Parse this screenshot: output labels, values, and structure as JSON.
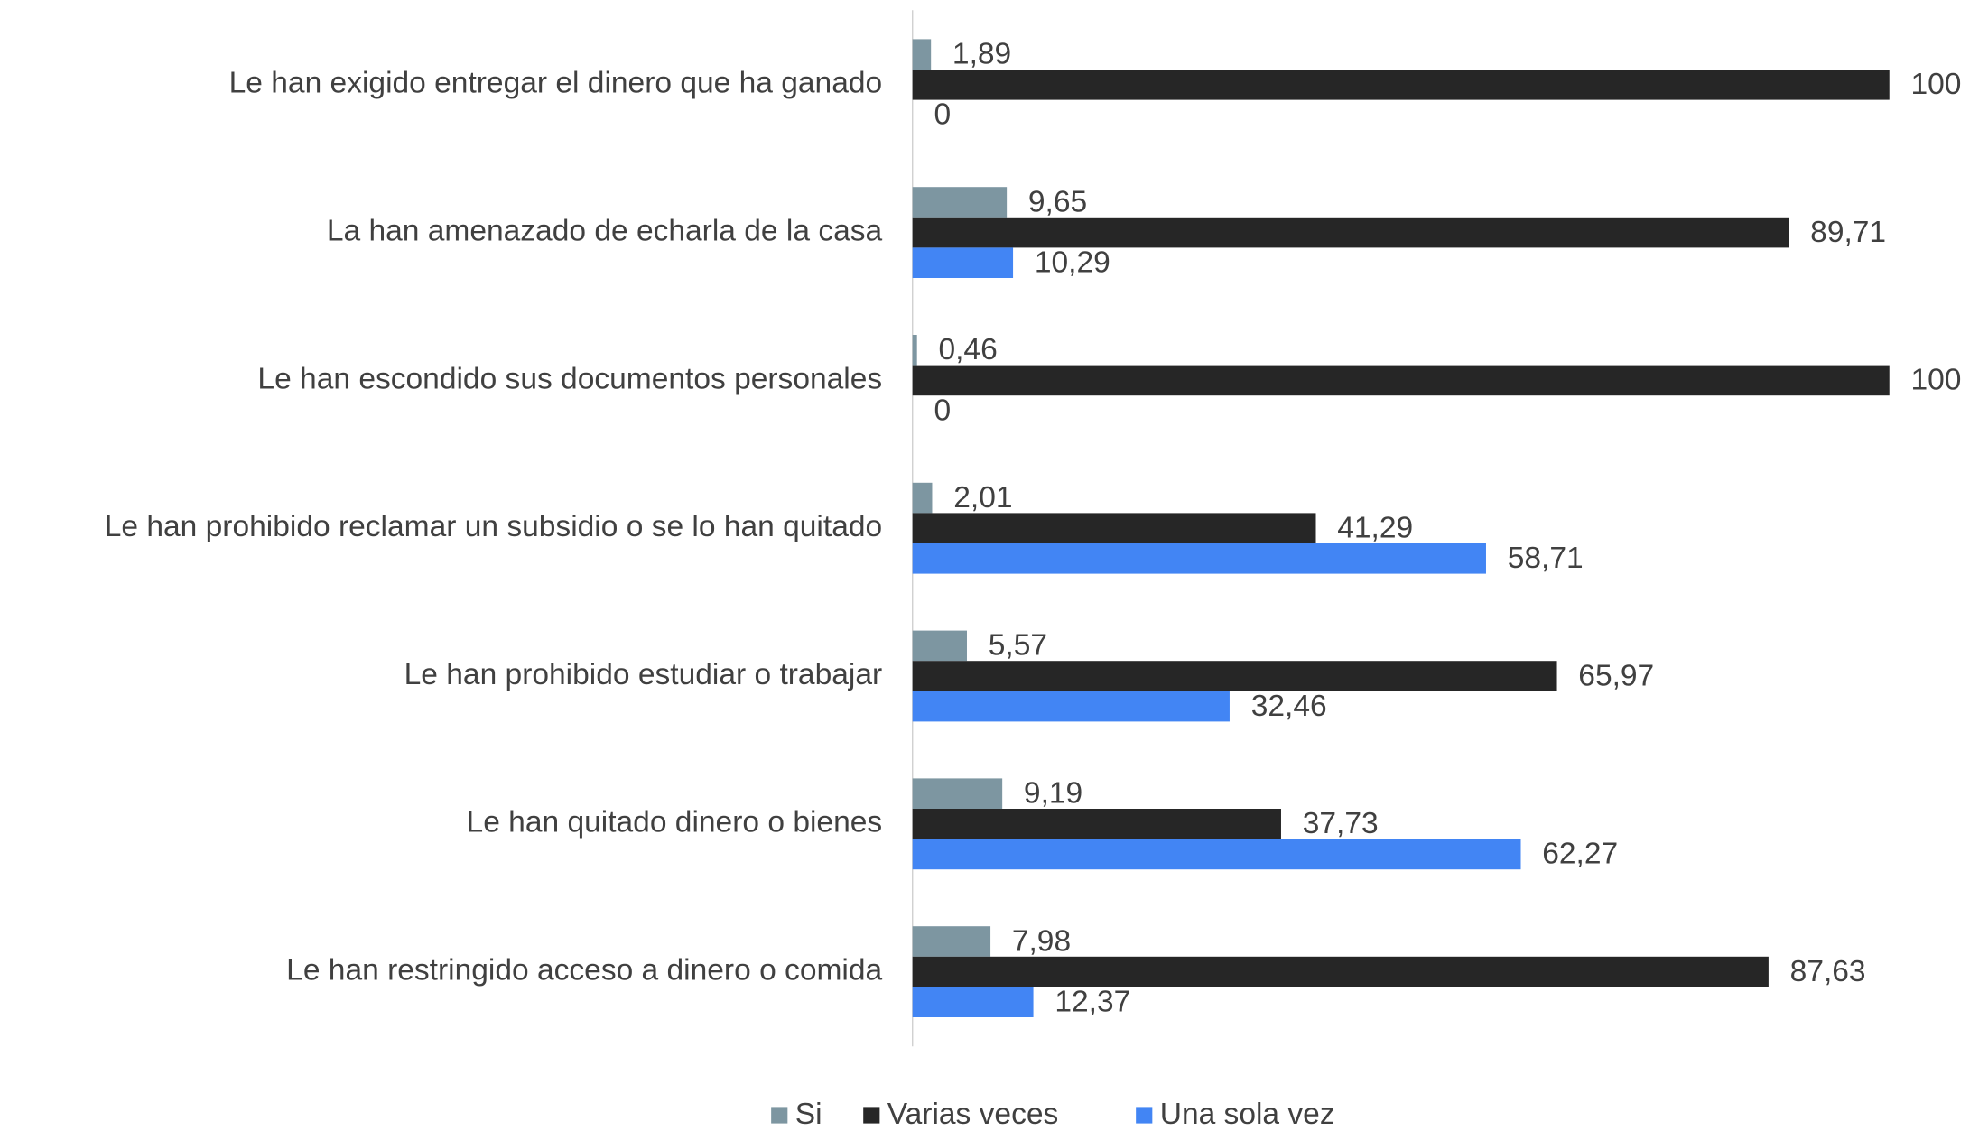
{
  "chart_data": {
    "type": "hbar",
    "categories": [
      "Le han exigido entregar el dinero que ha ganado",
      "La han amenazado de echarla de la casa",
      "Le han escondido sus documentos personales",
      "Le han prohibido reclamar un subsidio o se lo han quitado",
      "Le han prohibido estudiar o trabajar",
      "Le han quitado dinero o bienes",
      "Le han restringido acceso a dinero o comida"
    ],
    "series": [
      {
        "name": "Si",
        "color": "#7d96a1",
        "values": [
          1.89,
          9.65,
          0.46,
          2.01,
          5.57,
          9.19,
          7.98
        ],
        "value_labels": [
          "1,89",
          "9,65",
          "0,46",
          "2,01",
          "5,57",
          "9,19",
          "7,98"
        ]
      },
      {
        "name": "Varias veces",
        "color": "#262626",
        "values": [
          100,
          89.71,
          100,
          41.29,
          65.97,
          37.73,
          87.63
        ],
        "value_labels": [
          "100",
          "89,71",
          "100",
          "41,29",
          "65,97",
          "37,73",
          "87,63"
        ]
      },
      {
        "name": "Una sola vez",
        "color": "#4285f4",
        "values": [
          0,
          10.29,
          0,
          58.71,
          32.46,
          62.27,
          12.37
        ],
        "value_labels": [
          "0",
          "10,29",
          "0",
          "58,71",
          "32,46",
          "62,27",
          "12,37"
        ]
      }
    ],
    "xlim": [
      0,
      100
    ],
    "legend": "bottom"
  }
}
